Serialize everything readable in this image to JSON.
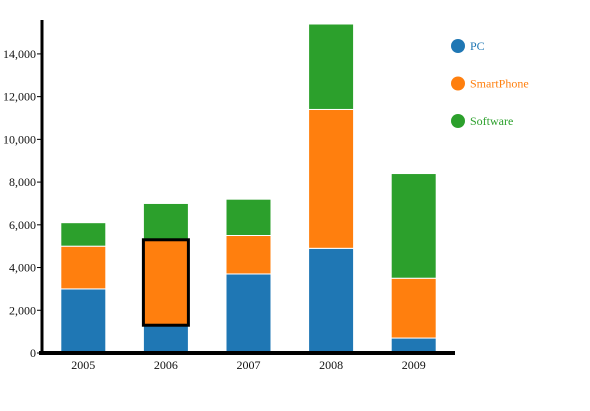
{
  "chart_data": {
    "type": "bar",
    "stacked": true,
    "categories": [
      "2005",
      "2006",
      "2007",
      "2008",
      "2009"
    ],
    "series": [
      {
        "name": "PC",
        "color": "#1f77b4",
        "values": [
          3000,
          1300,
          3700,
          4900,
          700
        ]
      },
      {
        "name": "SmartPhone",
        "color": "#ff7f0e",
        "values": [
          2000,
          4000,
          1800,
          6500,
          2800
        ]
      },
      {
        "name": "Software",
        "color": "#2ca02c",
        "values": [
          1100,
          1700,
          1700,
          4000,
          4900
        ]
      }
    ],
    "highlight": {
      "series": "SmartPhone",
      "category": "2006"
    },
    "ylim": [
      0,
      15400
    ],
    "yticks": [
      0,
      2000,
      4000,
      6000,
      8000,
      10000,
      12000,
      14000
    ],
    "ytick_labels": [
      "0",
      "2,000",
      "4,000",
      "6,000",
      "8,000",
      "10,000",
      "12,000",
      "14,000"
    ],
    "legend_position": "top-right",
    "grid": false,
    "title": "",
    "xlabel": "",
    "ylabel": ""
  }
}
